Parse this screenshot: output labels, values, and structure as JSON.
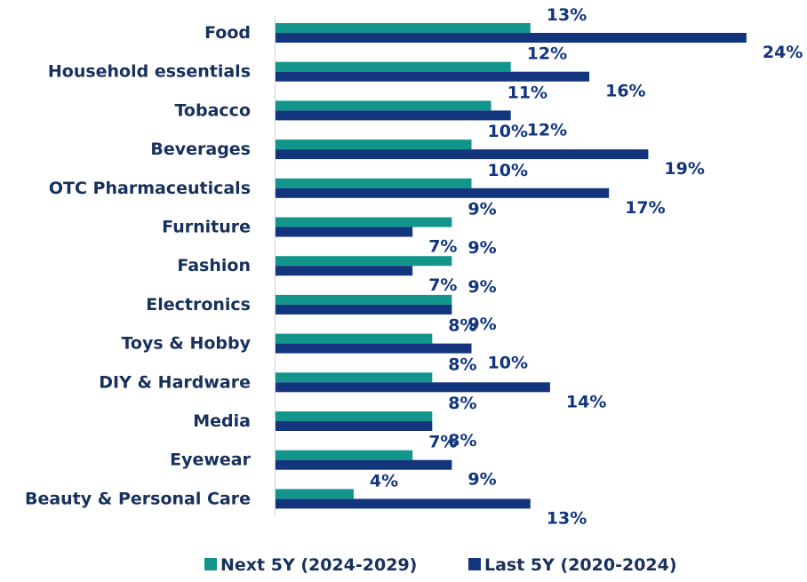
{
  "chart_data": {
    "type": "bar",
    "orientation": "horizontal",
    "categories": [
      "Food",
      "Household essentials",
      "Tobacco",
      "Beverages",
      "OTC Pharmaceuticals",
      "Furniture",
      "Fashion",
      "Electronics",
      "Toys & Hobby",
      "DIY & Hardware",
      "Media",
      "Eyewear",
      "Beauty & Personal Care"
    ],
    "series": [
      {
        "name": "Next 5Y (2024-2029)",
        "color": "#12968c",
        "values": [
          13,
          12,
          11,
          10,
          10,
          9,
          9,
          9,
          8,
          8,
          8,
          7,
          4
        ]
      },
      {
        "name": "Last 5Y (2020-2024)",
        "color": "#12357e",
        "values": [
          24,
          16,
          12,
          19,
          17,
          7,
          7,
          9,
          10,
          14,
          8,
          9,
          13
        ]
      }
    ],
    "value_suffix": "%",
    "xlim": [
      0,
      25
    ],
    "grid": false,
    "legend_position": "bottom"
  }
}
